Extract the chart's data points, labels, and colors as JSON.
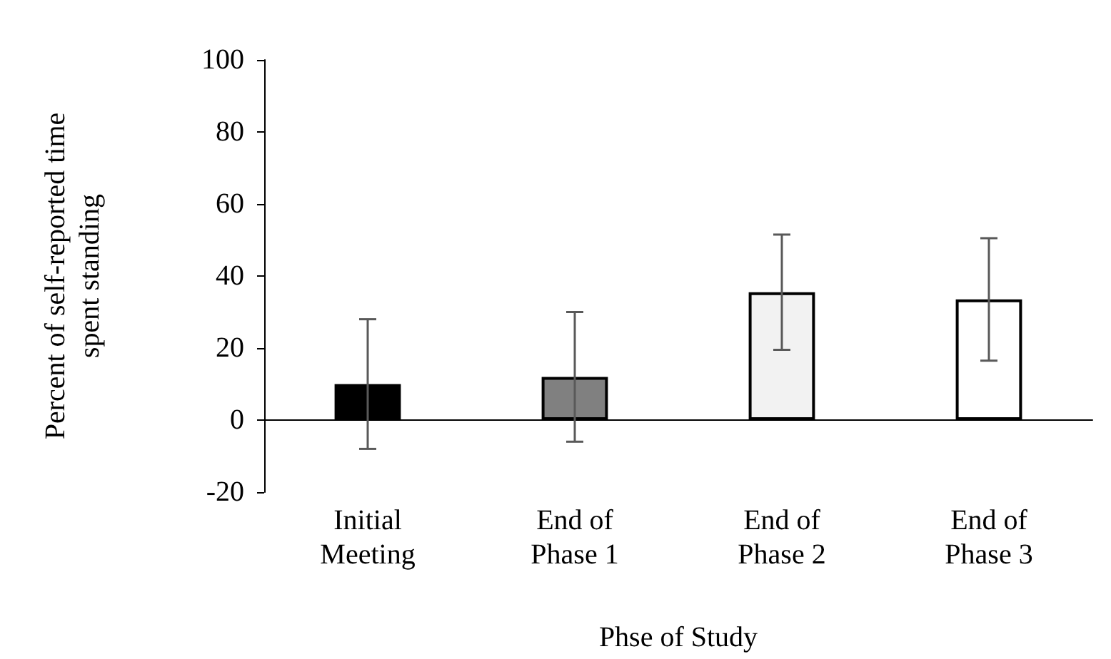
{
  "chart_data": {
    "type": "bar",
    "xlabel": "Phse of Study",
    "ylabel": "Percent of self-reported time\nspent standing",
    "categories": [
      "Initial\nMeeting",
      "End of\nPhase 1",
      "End of\nPhase 2",
      "End of\nPhase 3"
    ],
    "values": [
      10,
      12,
      35.5,
      33.5
    ],
    "colors": [
      "#000000",
      "#808080",
      "#f2f2f2",
      "#ffffff"
    ],
    "errors": [
      18,
      18,
      16,
      17
    ],
    "ylim": [
      -20,
      100
    ],
    "yticks": [
      -20,
      0,
      20,
      40,
      60,
      80,
      100
    ]
  }
}
